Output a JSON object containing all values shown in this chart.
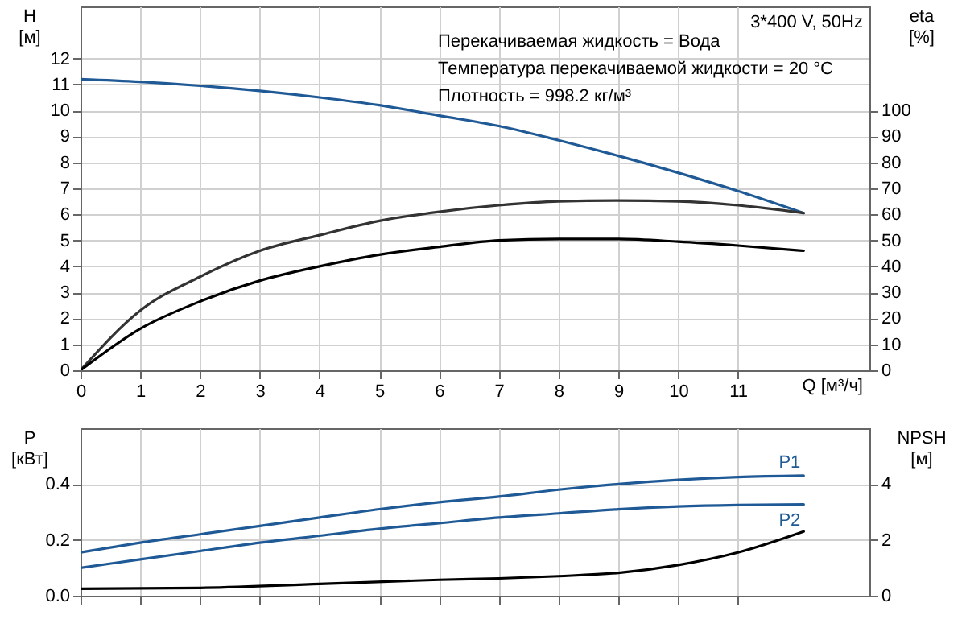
{
  "chart_data": [
    {
      "type": "line",
      "title": "3*400 V, 50Hz",
      "xlabel": "Q [м³/ч]",
      "ylabel": "H [м]",
      "y2label": "eta [%]",
      "annotations": [
        "Перекачиваемая жидкость = Вода",
        "Температура перекачиваемой жидкости = 20 °C",
        "Плотность = 998.2 кг/м³"
      ],
      "xlim": [
        0,
        13.2
      ],
      "xticks": [
        0,
        1,
        2,
        3,
        4,
        5,
        6,
        7,
        8,
        9,
        10,
        11
      ],
      "ylim": [
        0,
        14
      ],
      "yticks": [
        0,
        1,
        2,
        3,
        4,
        5,
        6,
        7,
        8,
        9,
        10,
        11,
        12
      ],
      "y2lim": [
        0,
        140
      ],
      "y2ticks": [
        0,
        10,
        20,
        30,
        40,
        50,
        60,
        70,
        80,
        90,
        100
      ],
      "grid": true,
      "legend": false,
      "line_style": "solid",
      "series": [
        {
          "color": "#1f5a96",
          "x": [
            0,
            1,
            2,
            3,
            4,
            5,
            6,
            7,
            8,
            9,
            10,
            11,
            12.1
          ],
          "values": [
            11.2,
            11.1,
            10.95,
            10.75,
            10.5,
            10.2,
            9.8,
            9.4,
            8.85,
            8.25,
            7.6,
            6.9,
            6.05
          ]
        },
        {
          "color": "#333333",
          "axis": "y2",
          "x": [
            0,
            1,
            2,
            3,
            4,
            5,
            6,
            7,
            8,
            9,
            10,
            11,
            12.1
          ],
          "values": [
            0,
            23,
            36,
            46,
            52,
            57.5,
            61,
            63.5,
            65,
            65.3,
            65,
            63.5,
            60.5
          ]
        },
        {
          "color": "#000000",
          "axis": "y2",
          "x": [
            0,
            1,
            2,
            3,
            4,
            5,
            6,
            7,
            8,
            9,
            10,
            11,
            12.1
          ],
          "values": [
            0,
            16,
            26.5,
            34.5,
            40,
            44.5,
            47.5,
            50,
            50.5,
            50.5,
            49.5,
            48,
            46
          ]
        }
      ]
    },
    {
      "type": "line",
      "ylabel": "P [кВт]",
      "y2label": "NPSH [м]",
      "xlim": [
        0,
        13.2
      ],
      "xticks": [
        0,
        1,
        2,
        3,
        4,
        5,
        6,
        7,
        8,
        9,
        10,
        11
      ],
      "ylim": [
        0,
        0.6
      ],
      "yticks": [
        {
          "value": 0,
          "label": "0.0"
        },
        0.2,
        0.4
      ],
      "y2lim": [
        0,
        6
      ],
      "y2ticks": [
        0,
        2,
        4
      ],
      "grid": true,
      "legend": false,
      "line_style": "solid",
      "tick_labels": "y",
      "series": [
        {
          "name": "P1",
          "color": "#1f5a96",
          "x": [
            0,
            1,
            2,
            3,
            4,
            5,
            6,
            7,
            8,
            9,
            10,
            11,
            12.1
          ],
          "values": [
            0.155,
            0.19,
            0.22,
            0.25,
            0.28,
            0.31,
            0.335,
            0.355,
            0.38,
            0.4,
            0.415,
            0.425,
            0.43
          ]
        },
        {
          "name": "P2",
          "color": "#1f5a96",
          "x": [
            0,
            1,
            2,
            3,
            4,
            5,
            6,
            7,
            8,
            9,
            10,
            11,
            12.1
          ],
          "values": [
            0.1,
            0.13,
            0.16,
            0.19,
            0.215,
            0.24,
            0.26,
            0.28,
            0.295,
            0.31,
            0.32,
            0.325,
            0.327
          ]
        },
        {
          "color": "#000000",
          "axis": "y2",
          "x": [
            0,
            2,
            4,
            6,
            7,
            8,
            9,
            10,
            11,
            12.1
          ],
          "values": [
            0.25,
            0.28,
            0.42,
            0.57,
            0.62,
            0.7,
            0.82,
            1.1,
            1.55,
            2.3
          ]
        }
      ]
    }
  ]
}
